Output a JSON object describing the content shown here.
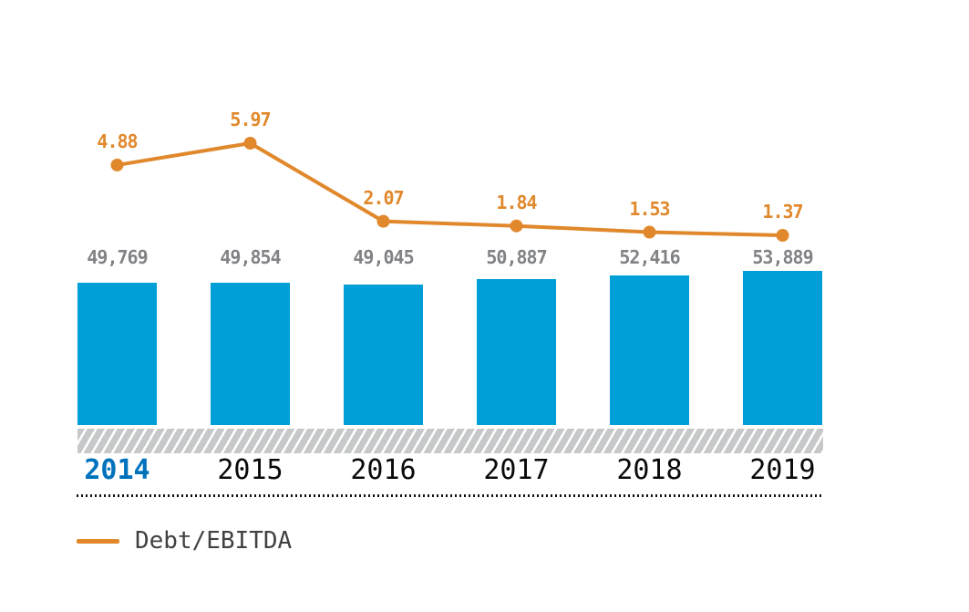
{
  "colors": {
    "bar-blue": "#009FD7",
    "line-orange": "#E0882B",
    "bar-label-gray": "#808285",
    "year-black": "#0A0A0A",
    "year-highlight-blue": "#0072BC",
    "hatch-gray": "#C7C8CA",
    "legend-text": "#414042",
    "divider-black": "#111111"
  },
  "legend": {
    "items": [
      {
        "label": "Debt/EBITDA",
        "swatch": "orange-line",
        "color": "#E0882B"
      }
    ]
  },
  "chart_data": {
    "type": "bar+line combo",
    "title": "",
    "xlabel": "",
    "ylabel": "",
    "grid": false,
    "legend_position": "bottom-left",
    "categories": [
      "2014",
      "2015",
      "2016",
      "2017",
      "2018",
      "2019"
    ],
    "highlighted_category": "2014",
    "series": [
      {
        "name": "",
        "type": "bar",
        "color": "#009FD7",
        "values": [
          49769,
          49854,
          49045,
          50887,
          52416,
          53889
        ],
        "labels": [
          "49,769",
          "49,854",
          "49,045",
          "50,887",
          "52,416",
          "53,889"
        ]
      },
      {
        "name": "Debt/EBITDA",
        "type": "line",
        "color": "#E0882B",
        "values": [
          4.88,
          5.97,
          2.07,
          1.84,
          1.53,
          1.37
        ],
        "labels": [
          "4.88",
          "5.97",
          "2.07",
          "1.84",
          "1.53",
          "1.37"
        ]
      }
    ]
  }
}
